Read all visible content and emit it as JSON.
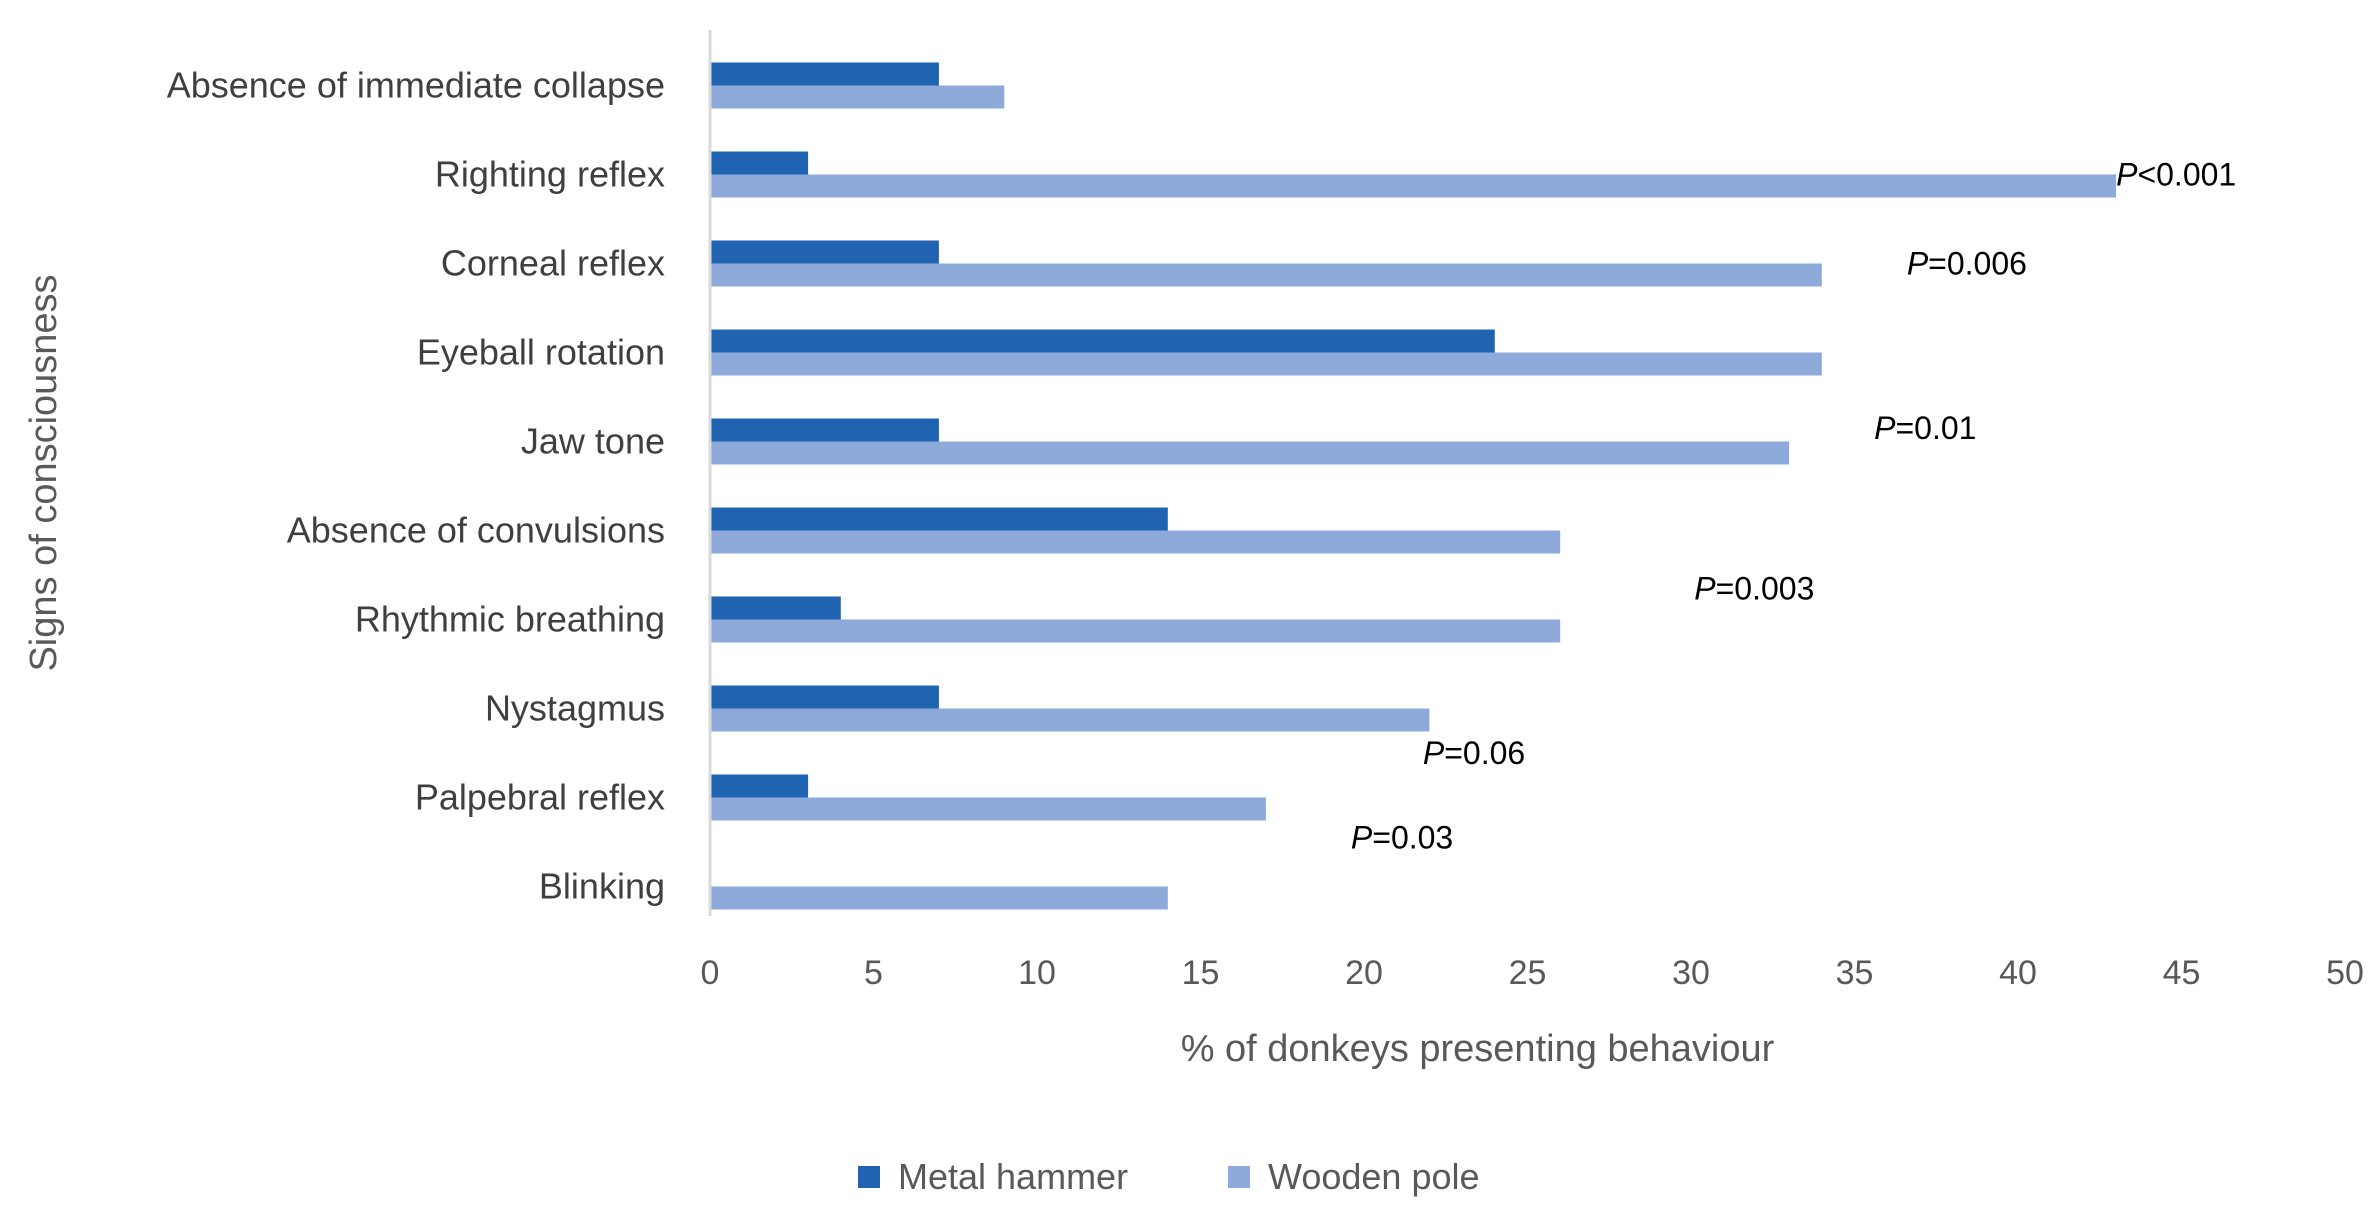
{
  "chart_data": {
    "type": "bar",
    "orientation": "horizontal",
    "title": "",
    "ylabel": "Signs of consciousness",
    "xlabel": "% of donkeys presenting behaviour",
    "xlim": [
      0,
      50
    ],
    "xticks": [
      0,
      5,
      10,
      15,
      20,
      25,
      30,
      35,
      40,
      45,
      50
    ],
    "grid": false,
    "legend_position": "bottom",
    "categories": [
      "Absence of immediate collapse",
      "Righting reflex",
      "Corneal reflex",
      "Eyeball rotation",
      "Jaw tone",
      "Absence of convulsions",
      "Rhythmic breathing",
      "Nystagmus",
      "Palpebral reflex",
      "Blinking"
    ],
    "series": [
      {
        "name": "Metal hammer",
        "color": "#1f63b1",
        "values": [
          7,
          3,
          7,
          24,
          7,
          14,
          4,
          7,
          3,
          0
        ]
      },
      {
        "name": "Wooden pole",
        "color": "#8eaadb",
        "values": [
          9,
          43,
          34,
          34,
          33,
          26,
          26,
          22,
          17,
          14
        ]
      }
    ],
    "annotations": [
      {
        "prefix": "P",
        "text": "<0.001",
        "x": 43.0,
        "category_pos": 1.0
      },
      {
        "prefix": "P",
        "text": "=0.006",
        "x": 36.6,
        "category_pos": 2.0
      },
      {
        "prefix": "P",
        "text": "=0.01",
        "x": 35.6,
        "category_pos": 3.85
      },
      {
        "prefix": "P",
        "text": "=0.003",
        "x": 30.1,
        "category_pos": 5.65
      },
      {
        "prefix": "P",
        "text": "=0.06",
        "x": 21.8,
        "category_pos": 7.5
      },
      {
        "prefix": "P",
        "text": "=0.03",
        "x": 19.6,
        "category_pos": 8.45
      }
    ]
  }
}
